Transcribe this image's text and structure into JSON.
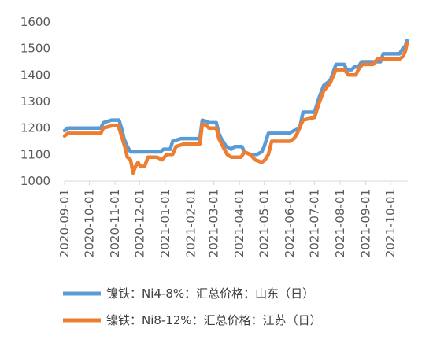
{
  "chart_data": {
    "type": "line",
    "title": "",
    "xlabel": "",
    "ylabel": "",
    "ylim": [
      1000,
      1600
    ],
    "yticks": [
      1000,
      1100,
      1200,
      1300,
      1400,
      1500,
      1600
    ],
    "xticks": [
      "2020-09-01",
      "2020-10-01",
      "2020-11-01",
      "2020-12-01",
      "2021-01-01",
      "2021-02-01",
      "2021-03-01",
      "2021-04-01",
      "2021-05-01",
      "2021-06-01",
      "2021-07-01",
      "2021-08-01",
      "2021-09-01",
      "2021-10-01"
    ],
    "grid": false,
    "legend_position": "bottom",
    "series": [
      {
        "name": "镍铁：Ni4-8%：汇总价格：山东（日）",
        "color": "#5b9bd5",
        "points": [
          [
            "2020-09-01",
            1190
          ],
          [
            "2020-09-05",
            1200
          ],
          [
            "2020-10-15",
            1200
          ],
          [
            "2020-10-18",
            1220
          ],
          [
            "2020-10-28",
            1230
          ],
          [
            "2020-11-06",
            1230
          ],
          [
            "2020-11-09",
            1200
          ],
          [
            "2020-11-12",
            1160
          ],
          [
            "2020-11-16",
            1130
          ],
          [
            "2020-11-20",
            1110
          ],
          [
            "2020-11-26",
            1110
          ],
          [
            "2020-12-10",
            1110
          ],
          [
            "2020-12-26",
            1110
          ],
          [
            "2020-12-30",
            1120
          ],
          [
            "2021-01-07",
            1120
          ],
          [
            "2021-01-10",
            1150
          ],
          [
            "2021-01-20",
            1160
          ],
          [
            "2021-02-12",
            1160
          ],
          [
            "2021-02-15",
            1230
          ],
          [
            "2021-02-20",
            1225
          ],
          [
            "2021-02-23",
            1220
          ],
          [
            "2021-03-04",
            1220
          ],
          [
            "2021-03-07",
            1180
          ],
          [
            "2021-03-10",
            1160
          ],
          [
            "2021-03-16",
            1130
          ],
          [
            "2021-03-22",
            1120
          ],
          [
            "2021-03-26",
            1130
          ],
          [
            "2021-04-04",
            1130
          ],
          [
            "2021-04-07",
            1110
          ],
          [
            "2021-04-14",
            1100
          ],
          [
            "2021-04-22",
            1100
          ],
          [
            "2021-04-28",
            1110
          ],
          [
            "2021-05-01",
            1130
          ],
          [
            "2021-05-06",
            1180
          ],
          [
            "2021-05-31",
            1180
          ],
          [
            "2021-06-06",
            1190
          ],
          [
            "2021-06-13",
            1200
          ],
          [
            "2021-06-17",
            1260
          ],
          [
            "2021-07-01",
            1260
          ],
          [
            "2021-07-06",
            1310
          ],
          [
            "2021-07-12",
            1360
          ],
          [
            "2021-07-20",
            1380
          ],
          [
            "2021-07-27",
            1440
          ],
          [
            "2021-08-06",
            1440
          ],
          [
            "2021-08-09",
            1420
          ],
          [
            "2021-08-15",
            1420
          ],
          [
            "2021-08-18",
            1430
          ],
          [
            "2021-08-23",
            1430
          ],
          [
            "2021-08-27",
            1450
          ],
          [
            "2021-09-12",
            1450
          ],
          [
            "2021-09-19",
            1450
          ],
          [
            "2021-09-22",
            1480
          ],
          [
            "2021-10-12",
            1480
          ],
          [
            "2021-10-16",
            1500
          ],
          [
            "2021-10-19",
            1510
          ],
          [
            "2021-10-21",
            1530
          ]
        ]
      },
      {
        "name": "镍铁：Ni8-12%：汇总价格：江苏（日）",
        "color": "#ed7d31",
        "points": [
          [
            "2020-09-01",
            1170
          ],
          [
            "2020-09-05",
            1180
          ],
          [
            "2020-10-15",
            1180
          ],
          [
            "2020-10-18",
            1200
          ],
          [
            "2020-10-30",
            1210
          ],
          [
            "2020-11-05",
            1210
          ],
          [
            "2020-11-09",
            1170
          ],
          [
            "2020-11-13",
            1130
          ],
          [
            "2020-11-16",
            1090
          ],
          [
            "2020-11-20",
            1080
          ],
          [
            "2020-11-23",
            1030
          ],
          [
            "2020-11-26",
            1055
          ],
          [
            "2020-11-29",
            1070
          ],
          [
            "2020-12-02",
            1055
          ],
          [
            "2020-12-07",
            1055
          ],
          [
            "2020-12-11",
            1090
          ],
          [
            "2020-12-22",
            1090
          ],
          [
            "2020-12-28",
            1080
          ],
          [
            "2021-01-03",
            1100
          ],
          [
            "2021-01-10",
            1100
          ],
          [
            "2021-01-14",
            1130
          ],
          [
            "2021-01-24",
            1140
          ],
          [
            "2021-02-12",
            1140
          ],
          [
            "2021-02-15",
            1215
          ],
          [
            "2021-02-20",
            1210
          ],
          [
            "2021-02-23",
            1200
          ],
          [
            "2021-03-04",
            1200
          ],
          [
            "2021-03-07",
            1160
          ],
          [
            "2021-03-12",
            1130
          ],
          [
            "2021-03-17",
            1100
          ],
          [
            "2021-03-22",
            1090
          ],
          [
            "2021-04-03",
            1090
          ],
          [
            "2021-04-07",
            1110
          ],
          [
            "2021-04-14",
            1100
          ],
          [
            "2021-04-20",
            1080
          ],
          [
            "2021-04-28",
            1070
          ],
          [
            "2021-05-02",
            1080
          ],
          [
            "2021-05-06",
            1100
          ],
          [
            "2021-05-10",
            1150
          ],
          [
            "2021-06-01",
            1150
          ],
          [
            "2021-06-06",
            1160
          ],
          [
            "2021-06-10",
            1180
          ],
          [
            "2021-06-17",
            1230
          ],
          [
            "2021-07-01",
            1240
          ],
          [
            "2021-07-06",
            1290
          ],
          [
            "2021-07-12",
            1340
          ],
          [
            "2021-07-20",
            1370
          ],
          [
            "2021-07-27",
            1420
          ],
          [
            "2021-08-06",
            1420
          ],
          [
            "2021-08-11",
            1400
          ],
          [
            "2021-08-20",
            1400
          ],
          [
            "2021-08-23",
            1420
          ],
          [
            "2021-08-28",
            1440
          ],
          [
            "2021-09-10",
            1440
          ],
          [
            "2021-09-15",
            1460
          ],
          [
            "2021-10-12",
            1460
          ],
          [
            "2021-10-16",
            1470
          ],
          [
            "2021-10-19",
            1490
          ],
          [
            "2021-10-21",
            1520
          ]
        ]
      }
    ]
  }
}
